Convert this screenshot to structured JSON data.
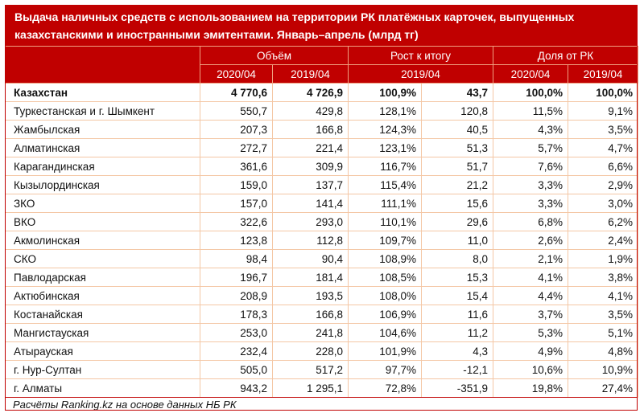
{
  "title": "Выдача наличных средств с использованием на территории РК платёжных карточек, выпущенных казахстанскими и иностранными эмитентами. Январь–апрель (млрд тг)",
  "headers": {
    "group1": "Объём",
    "group2": "Рост к итогу",
    "group3": "Доля от РК",
    "sub": [
      "2020/04",
      "2019/04",
      "2019/04",
      "2020/04",
      "2019/04"
    ]
  },
  "rows": [
    [
      "Казахстан",
      "4 770,6",
      "4 726,9",
      "100,9%",
      "43,7",
      "100,0%",
      "100,0%"
    ],
    [
      "Туркестанская и г. Шымкент",
      "550,7",
      "429,8",
      "128,1%",
      "120,8",
      "11,5%",
      "9,1%"
    ],
    [
      "Жамбылская",
      "207,3",
      "166,8",
      "124,3%",
      "40,5",
      "4,3%",
      "3,5%"
    ],
    [
      "Алматинская",
      "272,7",
      "221,4",
      "123,1%",
      "51,3",
      "5,7%",
      "4,7%"
    ],
    [
      "Карагандинская",
      "361,6",
      "309,9",
      "116,7%",
      "51,7",
      "7,6%",
      "6,6%"
    ],
    [
      "Кызылординская",
      "159,0",
      "137,7",
      "115,4%",
      "21,2",
      "3,3%",
      "2,9%"
    ],
    [
      "ЗКО",
      "157,0",
      "141,4",
      "111,1%",
      "15,6",
      "3,3%",
      "3,0%"
    ],
    [
      "ВКО",
      "322,6",
      "293,0",
      "110,1%",
      "29,6",
      "6,8%",
      "6,2%"
    ],
    [
      "Акмолинская",
      "123,8",
      "112,8",
      "109,7%",
      "11,0",
      "2,6%",
      "2,4%"
    ],
    [
      "СКО",
      "98,4",
      "90,4",
      "108,9%",
      "8,0",
      "2,1%",
      "1,9%"
    ],
    [
      "Павлодарская",
      "196,7",
      "181,4",
      "108,5%",
      "15,3",
      "4,1%",
      "3,8%"
    ],
    [
      "Актюбинская",
      "208,9",
      "193,5",
      "108,0%",
      "15,4",
      "4,4%",
      "4,1%"
    ],
    [
      "Костанайская",
      "178,3",
      "166,8",
      "106,9%",
      "11,6",
      "3,7%",
      "3,5%"
    ],
    [
      "Мангистауская",
      "253,0",
      "241,8",
      "104,6%",
      "11,2",
      "5,3%",
      "5,1%"
    ],
    [
      "Атырауская",
      "232,4",
      "228,0",
      "101,9%",
      "4,3",
      "4,9%",
      "4,8%"
    ],
    [
      "г. Нур-Султан",
      "505,0",
      "517,2",
      "97,7%",
      "-12,1",
      "10,6%",
      "10,9%"
    ],
    [
      "г. Алматы",
      "943,2",
      "1 295,1",
      "72,8%",
      "-351,9",
      "19,8%",
      "27,4%"
    ]
  ],
  "footer": "Расчёты Ranking.kz на основе данных НБ РК",
  "colors": {
    "accent": "#c00000",
    "grid": "#f4c7a5"
  }
}
